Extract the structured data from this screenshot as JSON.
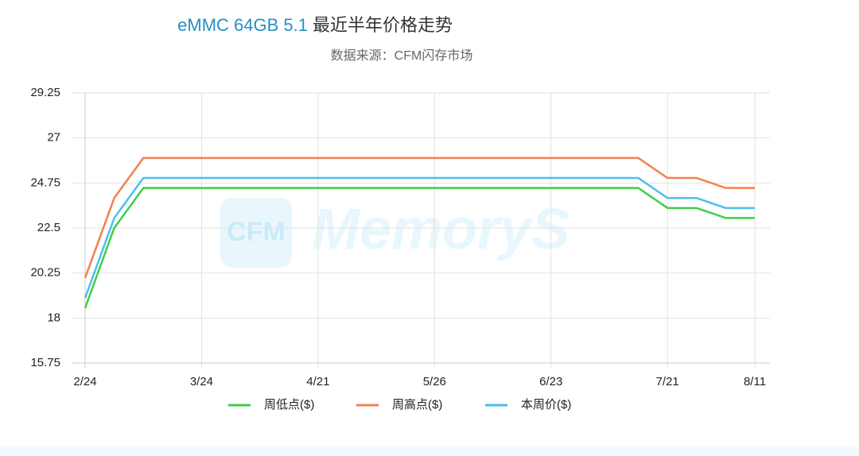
{
  "chart_data": {
    "type": "line",
    "title": {
      "prefix": "eMMC 64GB 5.1",
      "rest": "最近半年价格走势"
    },
    "subtitle": "数据来源：CFM闪存市场",
    "watermark": {
      "logo": "CFM",
      "text": "MemoryS"
    },
    "categories": [
      "2/24",
      null,
      null,
      null,
      "3/24",
      null,
      null,
      null,
      "4/21",
      null,
      null,
      null,
      "5/26",
      null,
      null,
      null,
      "6/23",
      null,
      null,
      null,
      "7/21",
      null,
      null,
      "8/11"
    ],
    "series": [
      {
        "name": "周低点($)",
        "color": "#3fce4a",
        "values": [
          18.5,
          22.5,
          24.5,
          24.5,
          24.5,
          24.5,
          24.5,
          24.5,
          24.5,
          24.5,
          24.5,
          24.5,
          24.5,
          24.5,
          24.5,
          24.5,
          24.5,
          24.5,
          24.5,
          24.5,
          23.5,
          23.5,
          23,
          23
        ]
      },
      {
        "name": "周高点($)",
        "color": "#f28150",
        "values": [
          20,
          24,
          26,
          26,
          26,
          26,
          26,
          26,
          26,
          26,
          26,
          26,
          26,
          26,
          26,
          26,
          26,
          26,
          26,
          26,
          25,
          25,
          24.5,
          24.5
        ]
      },
      {
        "name": "本周价($)",
        "color": "#4bbff2",
        "values": [
          19,
          23,
          25,
          25,
          25,
          25,
          25,
          25,
          25,
          25,
          25,
          25,
          25,
          25,
          25,
          25,
          25,
          25,
          25,
          25,
          24,
          24,
          23.5,
          23.5
        ]
      }
    ],
    "ylim": [
      15.75,
      29.25
    ],
    "yticks": [
      15.75,
      18,
      20.25,
      22.5,
      24.75,
      27,
      29.25
    ],
    "grid": true
  }
}
